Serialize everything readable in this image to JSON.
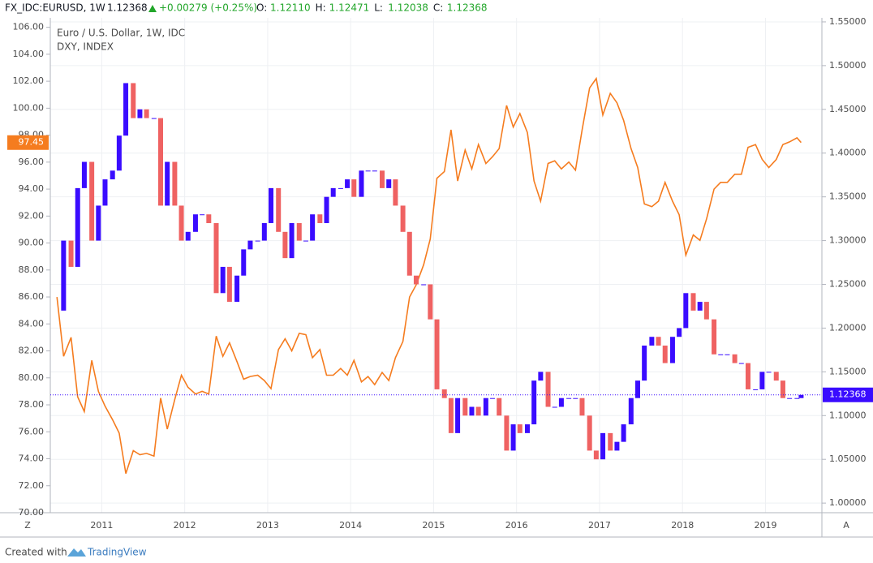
{
  "header": {
    "symbol": "FX_IDC:EURUSD, 1W",
    "last": "1.12368",
    "change": "+0.00279 (+0.25%)",
    "ohlc": [
      {
        "key": "O:",
        "value": "1.12110"
      },
      {
        "key": "H:",
        "value": "1.12471"
      },
      {
        "key": "L:",
        "value": "1.12038"
      },
      {
        "key": "C:",
        "value": "1.12368"
      }
    ]
  },
  "legend_lines": [
    "Euro / U.S. Dollar, 1W, IDC",
    "DXY, INDEX"
  ],
  "buttons": [
    "Z",
    "A"
  ],
  "footer": {
    "text": "Created with",
    "brand": "TradingView"
  },
  "chart_data": {
    "type": "combo",
    "x": [
      2010.46,
      2010.54,
      2010.63,
      2010.71,
      2010.79,
      2010.88,
      2010.96,
      2011.04,
      2011.13,
      2011.21,
      2011.29,
      2011.38,
      2011.46,
      2011.54,
      2011.63,
      2011.71,
      2011.79,
      2011.88,
      2011.96,
      2012.04,
      2012.13,
      2012.21,
      2012.29,
      2012.38,
      2012.46,
      2012.54,
      2012.63,
      2012.71,
      2012.79,
      2012.88,
      2012.96,
      2013.04,
      2013.13,
      2013.21,
      2013.29,
      2013.38,
      2013.46,
      2013.54,
      2013.63,
      2013.71,
      2013.79,
      2013.88,
      2013.96,
      2014.04,
      2014.13,
      2014.21,
      2014.29,
      2014.38,
      2014.46,
      2014.54,
      2014.63,
      2014.71,
      2014.79,
      2014.88,
      2014.96,
      2015.04,
      2015.13,
      2015.21,
      2015.29,
      2015.38,
      2015.46,
      2015.54,
      2015.63,
      2015.71,
      2015.79,
      2015.88,
      2015.96,
      2016.04,
      2016.13,
      2016.21,
      2016.29,
      2016.38,
      2016.46,
      2016.54,
      2016.63,
      2016.71,
      2016.79,
      2016.88,
      2016.96,
      2017.04,
      2017.13,
      2017.21,
      2017.29,
      2017.38,
      2017.46,
      2017.54,
      2017.63,
      2017.71,
      2017.79,
      2017.88,
      2017.96,
      2018.04,
      2018.13,
      2018.21,
      2018.29,
      2018.38,
      2018.46,
      2018.54,
      2018.63,
      2018.71,
      2018.79,
      2018.88,
      2018.96,
      2019.04,
      2019.13,
      2019.21,
      2019.29,
      2019.38,
      2019.43
    ],
    "series": [
      {
        "name": "DXY",
        "type": "line",
        "axis": "y",
        "color": "#f57c1f",
        "values": [
          86.0,
          81.6,
          83.0,
          78.6,
          77.5,
          81.3,
          79.0,
          77.9,
          76.9,
          75.9,
          72.9,
          74.6,
          74.3,
          74.4,
          74.2,
          78.5,
          76.2,
          78.4,
          80.2,
          79.3,
          78.8,
          79.0,
          78.8,
          83.1,
          81.6,
          82.6,
          81.2,
          79.9,
          80.1,
          80.2,
          79.8,
          79.2,
          82.1,
          82.9,
          82.0,
          83.3,
          83.2,
          81.5,
          82.1,
          80.2,
          80.2,
          80.7,
          80.2,
          81.3,
          79.7,
          80.1,
          79.5,
          80.4,
          79.8,
          81.5,
          82.7,
          86.0,
          86.9,
          88.4,
          90.3,
          94.8,
          95.3,
          98.4,
          94.6,
          96.9,
          95.5,
          97.3,
          95.9,
          96.4,
          97.0,
          100.2,
          98.6,
          99.6,
          98.2,
          94.6,
          93.1,
          95.9,
          96.1,
          95.5,
          96.0,
          95.4,
          98.4,
          101.5,
          102.2,
          99.5,
          101.1,
          100.4,
          99.1,
          97.0,
          95.6,
          92.9,
          92.7,
          93.1,
          94.5,
          93.1,
          92.1,
          89.1,
          90.6,
          90.2,
          91.8,
          94.0,
          94.5,
          94.5,
          95.1,
          95.1,
          97.1,
          97.3,
          96.2,
          95.6,
          96.2,
          97.3,
          97.5,
          97.8,
          97.45
        ]
      },
      {
        "name": "EURUSD",
        "type": "candlestick",
        "axis": "y2",
        "up_color": "#3a0cff",
        "down_color": "#ef6262",
        "values": [
          1.22,
          1.3,
          1.27,
          1.36,
          1.39,
          1.3,
          1.34,
          1.37,
          1.38,
          1.42,
          1.48,
          1.44,
          1.45,
          1.44,
          1.44,
          1.34,
          1.39,
          1.34,
          1.3,
          1.31,
          1.33,
          1.33,
          1.32,
          1.24,
          1.27,
          1.23,
          1.26,
          1.29,
          1.3,
          1.3,
          1.32,
          1.36,
          1.31,
          1.28,
          1.32,
          1.3,
          1.3,
          1.33,
          1.32,
          1.35,
          1.36,
          1.36,
          1.37,
          1.35,
          1.38,
          1.38,
          1.38,
          1.36,
          1.37,
          1.34,
          1.31,
          1.26,
          1.25,
          1.25,
          1.21,
          1.13,
          1.12,
          1.08,
          1.12,
          1.1,
          1.11,
          1.1,
          1.12,
          1.12,
          1.1,
          1.06,
          1.09,
          1.08,
          1.09,
          1.14,
          1.15,
          1.11,
          1.11,
          1.12,
          1.12,
          1.12,
          1.1,
          1.06,
          1.05,
          1.08,
          1.06,
          1.07,
          1.09,
          1.12,
          1.14,
          1.18,
          1.19,
          1.18,
          1.16,
          1.19,
          1.2,
          1.24,
          1.22,
          1.23,
          1.21,
          1.17,
          1.17,
          1.17,
          1.16,
          1.16,
          1.13,
          1.13,
          1.15,
          1.15,
          1.14,
          1.12,
          1.12,
          1.12,
          1.12368
        ]
      }
    ],
    "last_labels": [
      {
        "axis": "y",
        "value": 97.45,
        "label": "97.45",
        "color": "#f57c1f"
      },
      {
        "axis": "y2",
        "value": 1.12368,
        "label": "1.12368",
        "color": "#3a0cff"
      }
    ],
    "xlim": [
      2010.38,
      2019.68
    ],
    "xticks": [
      2011,
      2012,
      2013,
      2014,
      2015,
      2016,
      2017,
      2018,
      2019
    ],
    "ylim": [
      70,
      106.7
    ],
    "yticks": [
      {
        "value": 70,
        "label": "70.00"
      },
      {
        "value": 72,
        "label": "72.00"
      },
      {
        "value": 74,
        "label": "74.00"
      },
      {
        "value": 76,
        "label": "76.00"
      },
      {
        "value": 78,
        "label": "78.00"
      },
      {
        "value": 80,
        "label": "80.00"
      },
      {
        "value": 82,
        "label": "82.00"
      },
      {
        "value": 84,
        "label": "84.00"
      },
      {
        "value": 86,
        "label": "86.00"
      },
      {
        "value": 88,
        "label": "88.00"
      },
      {
        "value": 90,
        "label": "90.00"
      },
      {
        "value": 92,
        "label": "92.00"
      },
      {
        "value": 94,
        "label": "94.00"
      },
      {
        "value": 96,
        "label": "96.00"
      },
      {
        "value": 98,
        "label": "98.00"
      },
      {
        "value": 100,
        "label": "100.00"
      },
      {
        "value": 102,
        "label": "102.00"
      },
      {
        "value": 104,
        "label": "104.00"
      },
      {
        "value": 106,
        "label": "106.00"
      }
    ],
    "y2lim": [
      0.989,
      1.5546
    ],
    "y2ticks": [
      {
        "value": 1.0,
        "label": "1.00000"
      },
      {
        "value": 1.05,
        "label": "1.05000"
      },
      {
        "value": 1.1,
        "label": "1.10000"
      },
      {
        "value": 1.15,
        "label": "1.15000"
      },
      {
        "value": 1.2,
        "label": "1.20000"
      },
      {
        "value": 1.25,
        "label": "1.25000"
      },
      {
        "value": 1.3,
        "label": "1.30000"
      },
      {
        "value": 1.35,
        "label": "1.35000"
      },
      {
        "value": 1.4,
        "label": "1.40000"
      },
      {
        "value": 1.45,
        "label": "1.45000"
      },
      {
        "value": 1.5,
        "label": "1.50000"
      },
      {
        "value": 1.55,
        "label": "1.55000"
      }
    ],
    "grid": true
  }
}
